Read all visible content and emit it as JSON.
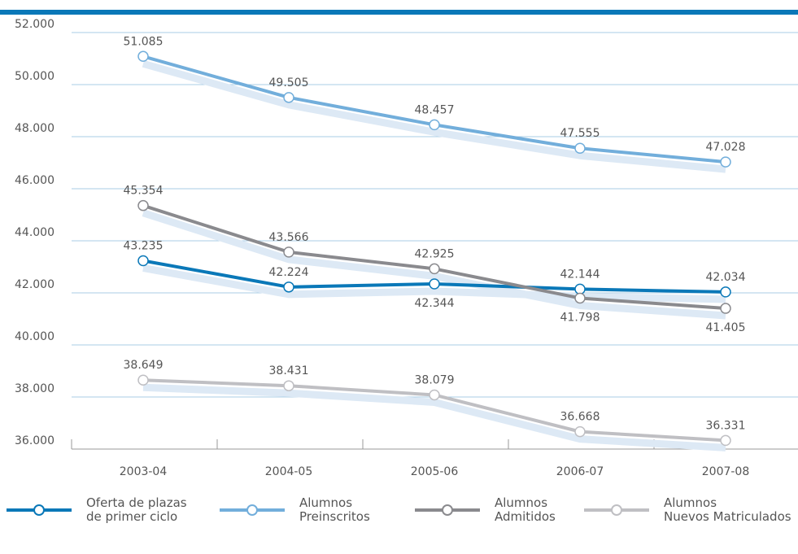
{
  "chart_data": {
    "type": "line",
    "categories": [
      "2003-04",
      "2004-05",
      "2005-06",
      "2006-07",
      "2007-08"
    ],
    "ylim": [
      36000,
      52000
    ],
    "yticks": [
      36000,
      38000,
      40000,
      42000,
      44000,
      46000,
      48000,
      50000,
      52000
    ],
    "ytick_labels": [
      "36.000",
      "38.000",
      "40.000",
      "42.000",
      "44.000",
      "46.000",
      "48.000",
      "50.000",
      "52.000"
    ],
    "grid": true,
    "legend_position": "bottom",
    "series": [
      {
        "name": "Oferta de plazas\nde primer ciclo",
        "color": "#0a78b8",
        "values": [
          43235,
          42224,
          42344,
          42144,
          42034
        ],
        "labels": [
          "43.235",
          "42.224",
          "42.344",
          "42.144",
          "42.034"
        ],
        "label_pos": [
          "above",
          "above",
          "below",
          "above",
          "above"
        ]
      },
      {
        "name": "Alumnos\nPreinscritos",
        "color": "#72aedb",
        "values": [
          51085,
          49505,
          48457,
          47555,
          47028
        ],
        "labels": [
          "51.085",
          "49.505",
          "48.457",
          "47.555",
          "47.028"
        ],
        "label_pos": [
          "above",
          "above",
          "above",
          "above",
          "above"
        ]
      },
      {
        "name": "Alumnos\nAdmitidos",
        "color": "#8a8a8e",
        "values": [
          45354,
          43566,
          42925,
          41798,
          41405
        ],
        "labels": [
          "45.354",
          "43.566",
          "42.925",
          "41.798",
          "41.405"
        ],
        "label_pos": [
          "above",
          "above",
          "above",
          "below",
          "below"
        ]
      },
      {
        "name": "Alumnos\nNuevos Matriculados",
        "color": "#bfbfc3",
        "values": [
          38649,
          38431,
          38079,
          36668,
          36331
        ],
        "labels": [
          "38.649",
          "38.431",
          "38.079",
          "36.668",
          "36.331"
        ],
        "label_pos": [
          "above",
          "above",
          "above",
          "above",
          "above"
        ]
      }
    ],
    "colors": {
      "top_bar": "#0a78b8",
      "grid": "#a9cde6",
      "axis": "#999999",
      "shadow": "#dde9f5"
    }
  }
}
